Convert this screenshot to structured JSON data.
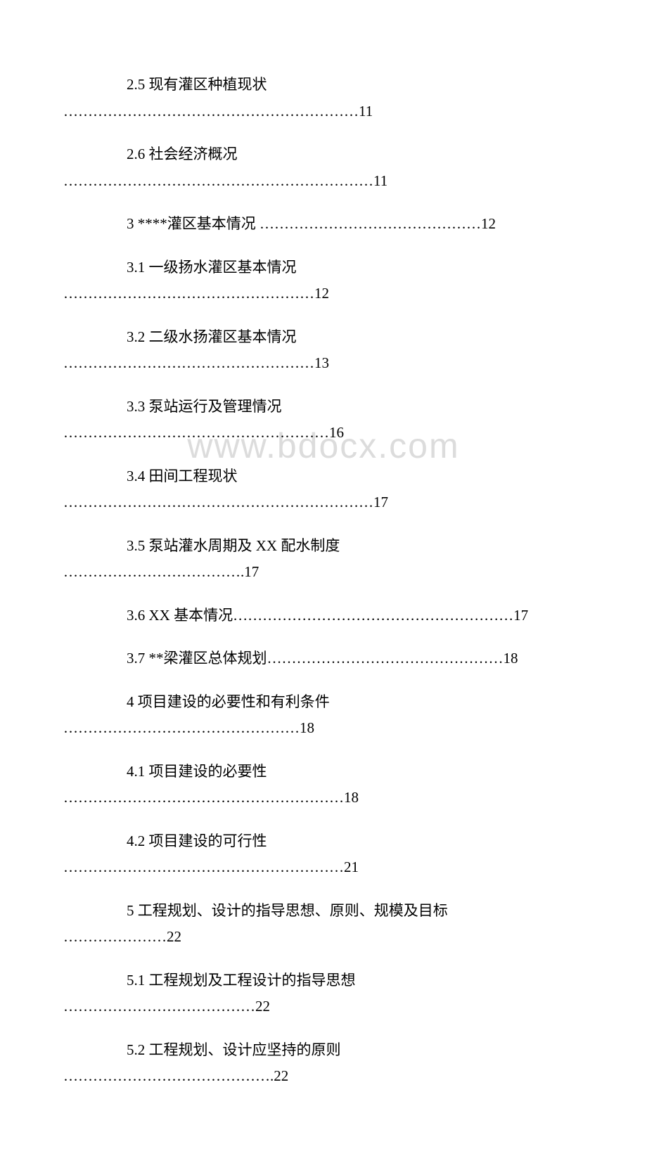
{
  "watermark": "www.bdocx.com",
  "toc": [
    {
      "title": "2.5 现有灌区种植现状",
      "dots": "……………………………………………………11",
      "inline": false
    },
    {
      "title": "2.6 社会经济概况",
      "dots": "………………………………………………………11",
      "inline": false
    },
    {
      "title": "3 ****灌区基本情况 ………………………………………12",
      "dots": "",
      "inline": true
    },
    {
      "title": "3.1 一级扬水灌区基本情况",
      "dots": "……………………………………………12",
      "inline": false
    },
    {
      "title": "3.2 二级水扬灌区基本情况",
      "dots": "……………………………………………13",
      "inline": false
    },
    {
      "title": "3.3 泵站运行及管理情况",
      "dots": "………………………………………………16",
      "inline": false
    },
    {
      "title": "3.4 田间工程现状",
      "dots": "………………………………………………………17",
      "inline": false
    },
    {
      "title": "3.5 泵站灌水周期及 XX 配水制度",
      "dots": "……………………………….17",
      "inline": false
    },
    {
      "title": "3.6 XX 基本情况…………………………………………………17",
      "dots": "",
      "inline": true
    },
    {
      "title": "3.7 **梁灌区总体规划…………………………………………18",
      "dots": "",
      "inline": true
    },
    {
      "title": "4 项目建设的必要性和有利条件",
      "dots": "…………………………………………18",
      "inline": false
    },
    {
      "title": "4.1 项目建设的必要性",
      "dots": "…………………………………………………18",
      "inline": false
    },
    {
      "title": "4.2 项目建设的可行性",
      "dots": "…………………………………………………21",
      "inline": false
    },
    {
      "title": "5 工程规划、设计的指导思想、原则、规模及目标",
      "dots": "…………………22",
      "inline": false
    },
    {
      "title": "5.1 工程规划及工程设计的指导思想",
      "dots": "…………………………………22",
      "inline": false
    },
    {
      "title": "5.2 工程规划、设计应坚持的原则",
      "dots": "…………………………………….22",
      "inline": false
    }
  ]
}
